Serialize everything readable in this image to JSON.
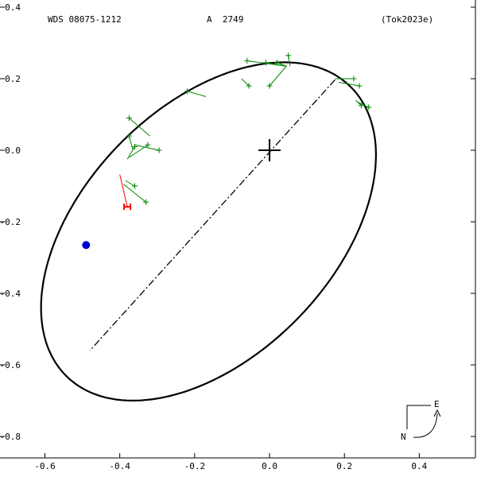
{
  "header": {
    "wds_id": "WDS 08075-1212",
    "component": "A  2749",
    "reference": "(Tok2023e)"
  },
  "compass": {
    "east_label": "E",
    "north_label": "N"
  },
  "colors": {
    "ellipse": "#000000",
    "line_of_nodes": "#000000",
    "observation_points": "#008800",
    "residual_lines": "#008800",
    "red_observation": "#ff0000",
    "current_position": "#0000cc",
    "primary_cross": "#000000"
  },
  "chart_data": {
    "type": "scatter",
    "title": "",
    "xlabel": "",
    "ylabel": "",
    "xlim": [
      -0.72,
      0.55
    ],
    "ylim": [
      -0.86,
      0.42
    ],
    "x_ticks": [
      -0.6,
      -0.4,
      -0.2,
      0.0,
      0.2,
      0.4
    ],
    "x_tick_labels": [
      "-0.6",
      "-0.4",
      "-0.2",
      "0.0",
      "0.2",
      "0.4"
    ],
    "y_ticks": [
      0.4,
      0.2,
      0.0,
      -0.2,
      -0.4,
      -0.6,
      -0.8
    ],
    "y_tick_labels": [
      "0.4",
      "0.2",
      "0.0",
      "-0.2",
      "-0.4",
      "-0.6",
      "-0.8"
    ],
    "grid": false,
    "primary_star": [
      0.0,
      0.0
    ],
    "orbit_ellipse": {
      "center": [
        -0.163,
        -0.227
      ],
      "semi_major": 0.555,
      "semi_minor": 0.34,
      "angle_deg": 48.5
    },
    "line_of_nodes": [
      [
        0.175,
        0.197
      ],
      [
        -0.48,
        -0.56
      ]
    ],
    "current_position": [
      -0.49,
      -0.265
    ],
    "observations": [
      {
        "obs": [
          -0.06,
          0.25
        ],
        "model": [
          0.045,
          0.235
        ]
      },
      {
        "obs": [
          -0.01,
          0.245
        ],
        "model": [
          0.045,
          0.235
        ]
      },
      {
        "obs": [
          0.02,
          0.245
        ],
        "model": [
          0.045,
          0.235
        ]
      },
      {
        "obs": [
          0.05,
          0.265
        ],
        "model": [
          0.055,
          0.235
        ]
      },
      {
        "obs": [
          -0.055,
          0.18
        ],
        "model": [
          -0.075,
          0.2
        ]
      },
      {
        "obs": [
          0.0,
          0.18
        ],
        "model": [
          0.045,
          0.235
        ]
      },
      {
        "obs": [
          -0.22,
          0.165
        ],
        "model": [
          -0.17,
          0.15
        ]
      },
      {
        "obs": [
          0.225,
          0.2
        ],
        "model": [
          0.175,
          0.2
        ]
      },
      {
        "obs": [
          0.24,
          0.18
        ],
        "model": [
          0.185,
          0.19
        ]
      },
      {
        "obs": [
          0.245,
          0.125
        ],
        "model": [
          0.23,
          0.14
        ]
      },
      {
        "obs": [
          0.265,
          0.12
        ],
        "model": [
          0.235,
          0.135
        ]
      },
      {
        "obs": [
          -0.375,
          0.09
        ],
        "model": [
          -0.32,
          0.04
        ]
      },
      {
        "obs": [
          -0.375,
          0.04
        ],
        "model": [
          -0.365,
          0.0
        ]
      },
      {
        "obs": [
          -0.36,
          0.01
        ],
        "model": [
          -0.38,
          -0.025
        ]
      },
      {
        "obs": [
          -0.325,
          0.015
        ],
        "model": [
          -0.375,
          -0.02
        ]
      },
      {
        "obs": [
          -0.295,
          0.0
        ],
        "model": [
          -0.36,
          0.015
        ]
      },
      {
        "obs": [
          -0.36,
          -0.1
        ],
        "model": [
          -0.385,
          -0.085
        ]
      },
      {
        "obs": [
          -0.33,
          -0.145
        ],
        "model": [
          -0.39,
          -0.095
        ]
      }
    ],
    "red_observations": [
      {
        "obs": [
          -0.38,
          -0.158
        ],
        "model": [
          -0.4,
          -0.068
        ]
      }
    ]
  }
}
